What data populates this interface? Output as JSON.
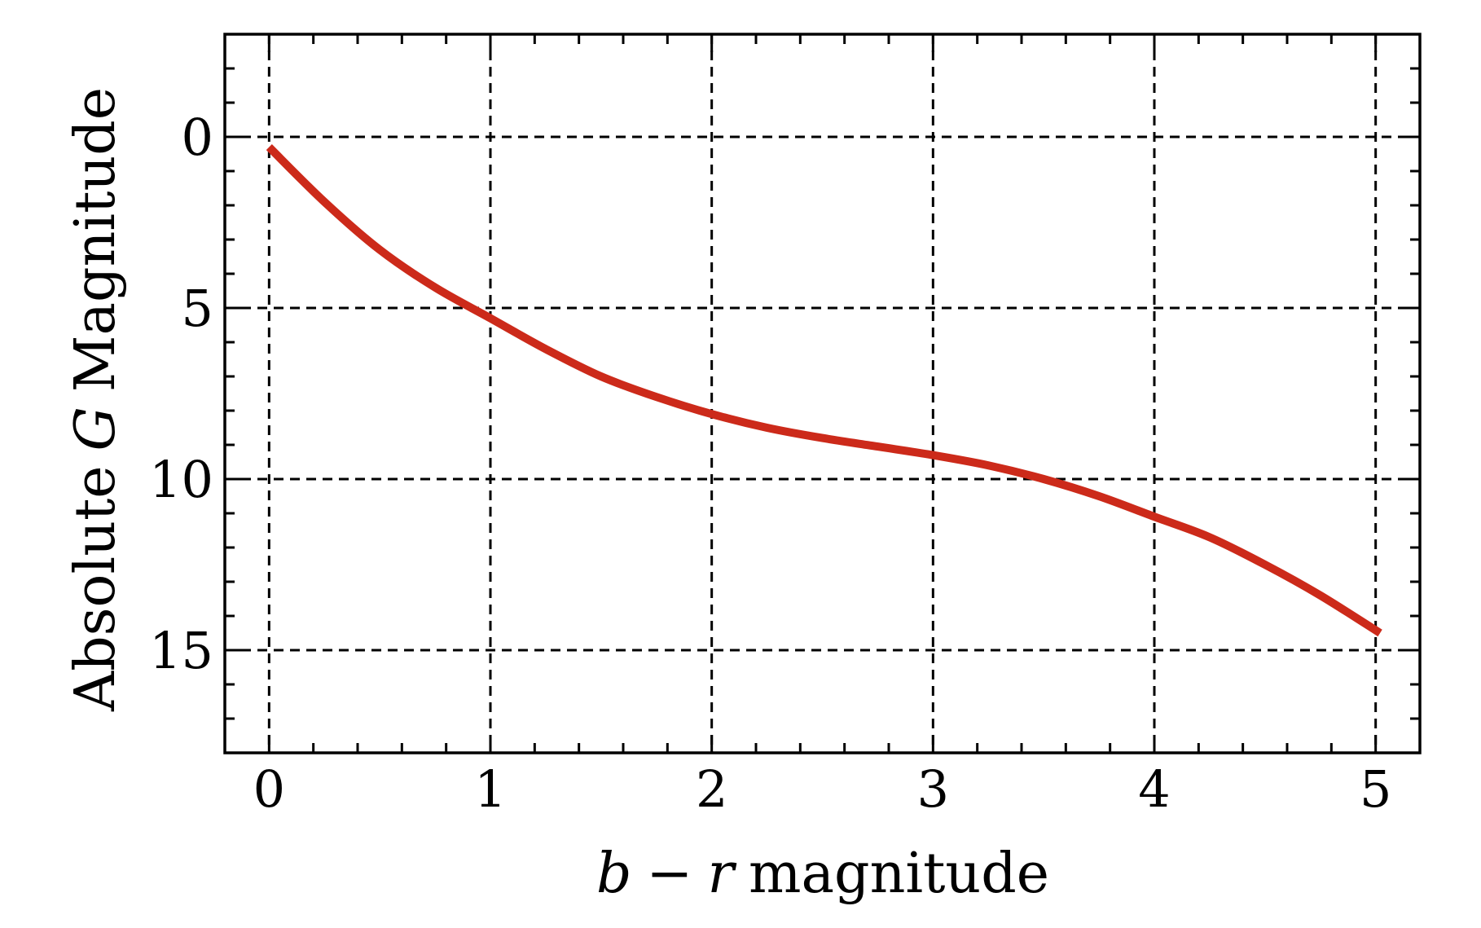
{
  "chart_data": {
    "type": "line",
    "xlabel": {
      "var1": "b",
      "op": "−",
      "var2": "r",
      "rest": "magnitude"
    },
    "ylabel": {
      "pre": "Absolute",
      "var": "G",
      "post": "Magnitude"
    },
    "xlim": [
      -0.2,
      5.2
    ],
    "ylim": [
      18,
      -3
    ],
    "y_inverted": true,
    "x_major_ticks": [
      0,
      1,
      2,
      3,
      4,
      5
    ],
    "x_tick_labels": [
      "0",
      "1",
      "2",
      "3",
      "4",
      "5"
    ],
    "x_minor_step": 0.2,
    "y_major_ticks": [
      0,
      5,
      10,
      15
    ],
    "y_tick_labels": [
      "0",
      "5",
      "10",
      "15"
    ],
    "y_minor_step": 1,
    "grid": true,
    "grid_style": "dashed",
    "line_color": "#cc2a1a",
    "series": [
      {
        "x": [
          0.0,
          0.25,
          0.5,
          0.75,
          1.0,
          1.25,
          1.5,
          1.75,
          2.0,
          2.25,
          2.5,
          2.75,
          3.0,
          3.25,
          3.5,
          3.75,
          4.0,
          4.25,
          4.5,
          4.75,
          5.02
        ],
        "y": [
          0.3,
          1.9,
          3.3,
          4.4,
          5.3,
          6.2,
          7.0,
          7.6,
          8.1,
          8.5,
          8.8,
          9.05,
          9.3,
          9.6,
          10.0,
          10.5,
          11.1,
          11.7,
          12.5,
          13.4,
          14.5
        ]
      }
    ]
  }
}
